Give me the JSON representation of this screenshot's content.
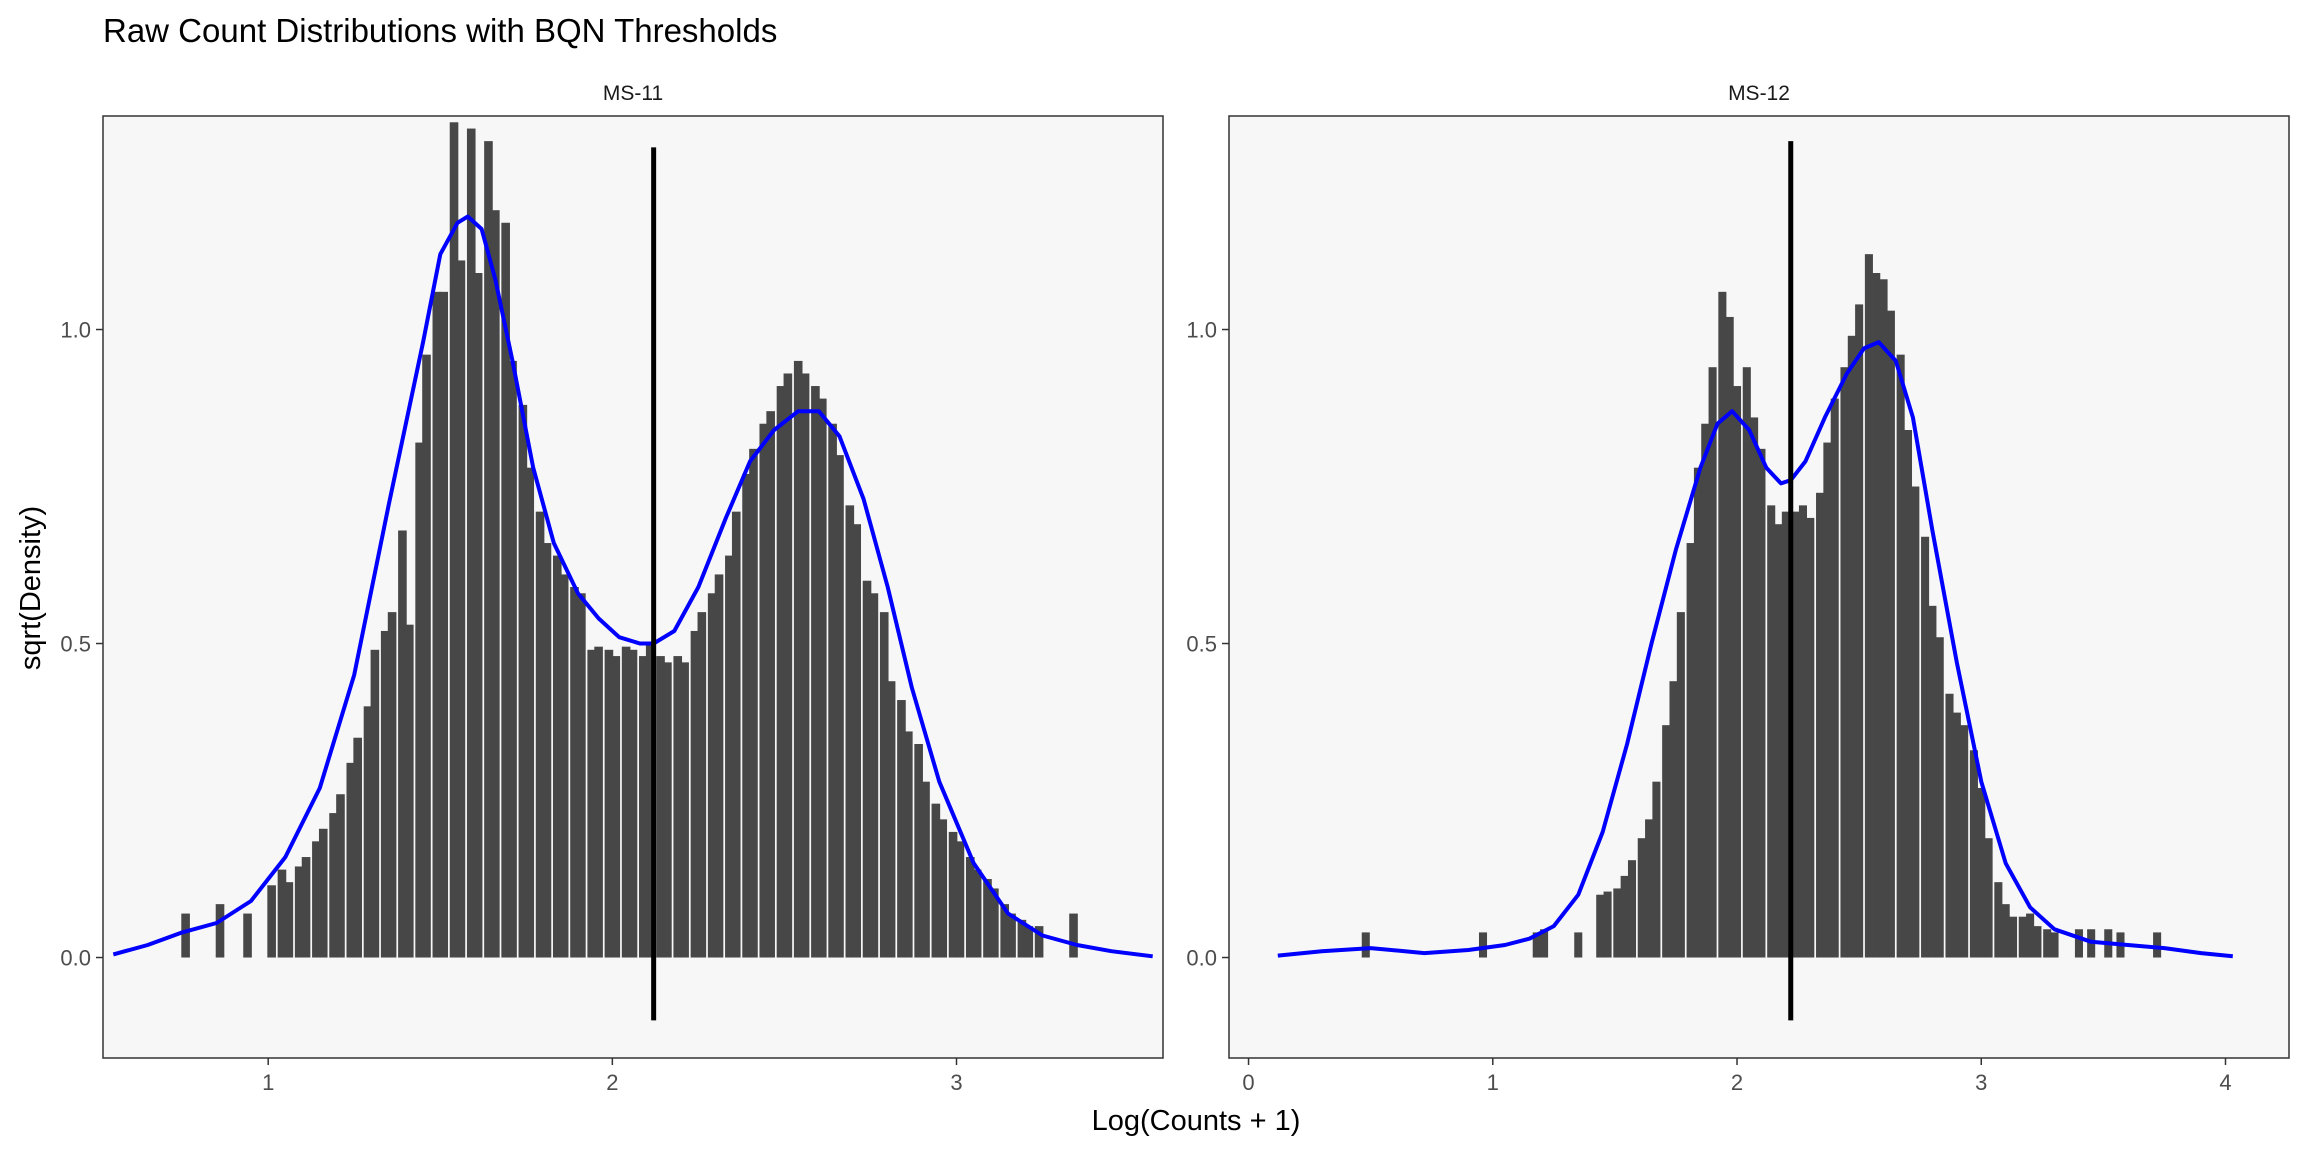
{
  "title": "Raw Count Distributions with BQN Thresholds",
  "xlabel": "Log(Counts + 1)",
  "ylabel": "sqrt(Density)",
  "colors": {
    "bars": "#474747",
    "density": "#0000ff",
    "threshold": "#000000",
    "panel_bg": "#f7f7f7"
  },
  "chart_data": [
    {
      "type": "bar",
      "panel": "MS-11",
      "xlim": [
        0.52,
        3.6
      ],
      "ylim": [
        -0.16,
        1.34
      ],
      "x_ticks": [
        1,
        2,
        3
      ],
      "y_ticks": [
        0.0,
        0.5,
        1.0
      ],
      "y_tick_labels": [
        "0.0",
        "0.5",
        "1.0"
      ],
      "threshold": 2.12,
      "threshold_range": [
        -0.1,
        1.29
      ],
      "bin_width": 0.025,
      "bins": [
        [
          0.76,
          0.07
        ],
        [
          0.86,
          0.085
        ],
        [
          0.94,
          0.07
        ],
        [
          1.01,
          0.115
        ],
        [
          1.04,
          0.14
        ],
        [
          1.06,
          0.12
        ],
        [
          1.09,
          0.145
        ],
        [
          1.11,
          0.16
        ],
        [
          1.14,
          0.185
        ],
        [
          1.16,
          0.205
        ],
        [
          1.19,
          0.23
        ],
        [
          1.21,
          0.26
        ],
        [
          1.24,
          0.31
        ],
        [
          1.26,
          0.35
        ],
        [
          1.29,
          0.4
        ],
        [
          1.31,
          0.49
        ],
        [
          1.34,
          0.52
        ],
        [
          1.36,
          0.55
        ],
        [
          1.39,
          0.68
        ],
        [
          1.41,
          0.53
        ],
        [
          1.44,
          0.82
        ],
        [
          1.46,
          0.96
        ],
        [
          1.49,
          1.06
        ],
        [
          1.51,
          1.06
        ],
        [
          1.54,
          1.33
        ],
        [
          1.56,
          1.11
        ],
        [
          1.59,
          1.32
        ],
        [
          1.61,
          1.09
        ],
        [
          1.64,
          1.3
        ],
        [
          1.66,
          1.19
        ],
        [
          1.69,
          1.17
        ],
        [
          1.71,
          0.95
        ],
        [
          1.74,
          0.88
        ],
        [
          1.76,
          0.78
        ],
        [
          1.79,
          0.71
        ],
        [
          1.81,
          0.66
        ],
        [
          1.84,
          0.64
        ],
        [
          1.86,
          0.61
        ],
        [
          1.89,
          0.59
        ],
        [
          1.91,
          0.58
        ],
        [
          1.94,
          0.49
        ],
        [
          1.96,
          0.495
        ],
        [
          1.99,
          0.49
        ],
        [
          2.01,
          0.48
        ],
        [
          2.04,
          0.495
        ],
        [
          2.06,
          0.49
        ],
        [
          2.09,
          0.48
        ],
        [
          2.11,
          0.5
        ],
        [
          2.14,
          0.48
        ],
        [
          2.16,
          0.47
        ],
        [
          2.19,
          0.48
        ],
        [
          2.21,
          0.47
        ],
        [
          2.24,
          0.52
        ],
        [
          2.26,
          0.55
        ],
        [
          2.29,
          0.58
        ],
        [
          2.31,
          0.61
        ],
        [
          2.34,
          0.64
        ],
        [
          2.36,
          0.71
        ],
        [
          2.39,
          0.77
        ],
        [
          2.41,
          0.81
        ],
        [
          2.44,
          0.85
        ],
        [
          2.46,
          0.87
        ],
        [
          2.49,
          0.91
        ],
        [
          2.51,
          0.93
        ],
        [
          2.54,
          0.95
        ],
        [
          2.56,
          0.93
        ],
        [
          2.59,
          0.91
        ],
        [
          2.61,
          0.89
        ],
        [
          2.64,
          0.85
        ],
        [
          2.66,
          0.8
        ],
        [
          2.69,
          0.72
        ],
        [
          2.71,
          0.69
        ],
        [
          2.74,
          0.6
        ],
        [
          2.76,
          0.58
        ],
        [
          2.79,
          0.55
        ],
        [
          2.81,
          0.44
        ],
        [
          2.84,
          0.41
        ],
        [
          2.86,
          0.36
        ],
        [
          2.89,
          0.34
        ],
        [
          2.91,
          0.28
        ],
        [
          2.94,
          0.245
        ],
        [
          2.96,
          0.22
        ],
        [
          2.99,
          0.2
        ],
        [
          3.01,
          0.185
        ],
        [
          3.04,
          0.16
        ],
        [
          3.06,
          0.14
        ],
        [
          3.09,
          0.125
        ],
        [
          3.11,
          0.11
        ],
        [
          3.14,
          0.085
        ],
        [
          3.16,
          0.07
        ],
        [
          3.19,
          0.06
        ],
        [
          3.21,
          0.05
        ],
        [
          3.24,
          0.05
        ],
        [
          3.34,
          0.07
        ]
      ],
      "density": [
        [
          0.55,
          0.005
        ],
        [
          0.65,
          0.02
        ],
        [
          0.75,
          0.04
        ],
        [
          0.85,
          0.055
        ],
        [
          0.95,
          0.09
        ],
        [
          1.05,
          0.16
        ],
        [
          1.15,
          0.27
        ],
        [
          1.25,
          0.45
        ],
        [
          1.35,
          0.72
        ],
        [
          1.45,
          0.98
        ],
        [
          1.5,
          1.12
        ],
        [
          1.55,
          1.17
        ],
        [
          1.58,
          1.18
        ],
        [
          1.62,
          1.16
        ],
        [
          1.66,
          1.08
        ],
        [
          1.71,
          0.95
        ],
        [
          1.77,
          0.78
        ],
        [
          1.83,
          0.66
        ],
        [
          1.9,
          0.58
        ],
        [
          1.96,
          0.54
        ],
        [
          2.02,
          0.51
        ],
        [
          2.08,
          0.5
        ],
        [
          2.12,
          0.5
        ],
        [
          2.18,
          0.52
        ],
        [
          2.25,
          0.59
        ],
        [
          2.33,
          0.7
        ],
        [
          2.4,
          0.79
        ],
        [
          2.47,
          0.84
        ],
        [
          2.54,
          0.87
        ],
        [
          2.6,
          0.87
        ],
        [
          2.66,
          0.83
        ],
        [
          2.73,
          0.73
        ],
        [
          2.8,
          0.59
        ],
        [
          2.87,
          0.43
        ],
        [
          2.95,
          0.28
        ],
        [
          3.05,
          0.15
        ],
        [
          3.15,
          0.07
        ],
        [
          3.25,
          0.035
        ],
        [
          3.35,
          0.02
        ],
        [
          3.45,
          0.01
        ],
        [
          3.57,
          0.002
        ]
      ]
    },
    {
      "type": "bar",
      "panel": "MS-12",
      "xlim": [
        -0.08,
        4.26
      ],
      "ylim": [
        -0.16,
        1.34
      ],
      "x_ticks": [
        0,
        1,
        2,
        3,
        4
      ],
      "y_ticks": [
        0.0,
        0.5,
        1.0
      ],
      "y_tick_labels": [
        "0.0",
        "0.5",
        "1.0"
      ],
      "threshold": 2.22,
      "threshold_range": [
        -0.1,
        1.3
      ],
      "bin_width": 0.033,
      "bins": [
        [
          0.48,
          0.04
        ],
        [
          0.96,
          0.04
        ],
        [
          1.18,
          0.04
        ],
        [
          1.21,
          0.045
        ],
        [
          1.35,
          0.04
        ],
        [
          1.44,
          0.1
        ],
        [
          1.47,
          0.105
        ],
        [
          1.51,
          0.11
        ],
        [
          1.54,
          0.13
        ],
        [
          1.57,
          0.155
        ],
        [
          1.61,
          0.19
        ],
        [
          1.64,
          0.22
        ],
        [
          1.67,
          0.28
        ],
        [
          1.71,
          0.37
        ],
        [
          1.74,
          0.44
        ],
        [
          1.77,
          0.55
        ],
        [
          1.81,
          0.66
        ],
        [
          1.84,
          0.78
        ],
        [
          1.87,
          0.85
        ],
        [
          1.9,
          0.94
        ],
        [
          1.94,
          1.06
        ],
        [
          1.97,
          1.02
        ],
        [
          2.0,
          0.91
        ],
        [
          2.04,
          0.94
        ],
        [
          2.07,
          0.86
        ],
        [
          2.1,
          0.81
        ],
        [
          2.14,
          0.72
        ],
        [
          2.17,
          0.69
        ],
        [
          2.2,
          0.71
        ],
        [
          2.24,
          0.71
        ],
        [
          2.27,
          0.72
        ],
        [
          2.3,
          0.7
        ],
        [
          2.34,
          0.74
        ],
        [
          2.37,
          0.82
        ],
        [
          2.4,
          0.89
        ],
        [
          2.44,
          0.94
        ],
        [
          2.47,
          0.99
        ],
        [
          2.5,
          1.04
        ],
        [
          2.54,
          1.12
        ],
        [
          2.57,
          1.09
        ],
        [
          2.6,
          1.08
        ],
        [
          2.63,
          1.03
        ],
        [
          2.67,
          0.96
        ],
        [
          2.7,
          0.84
        ],
        [
          2.73,
          0.75
        ],
        [
          2.77,
          0.67
        ],
        [
          2.8,
          0.56
        ],
        [
          2.83,
          0.51
        ],
        [
          2.87,
          0.42
        ],
        [
          2.9,
          0.39
        ],
        [
          2.93,
          0.37
        ],
        [
          2.97,
          0.33
        ],
        [
          3.0,
          0.27
        ],
        [
          3.03,
          0.19
        ],
        [
          3.07,
          0.12
        ],
        [
          3.1,
          0.085
        ],
        [
          3.13,
          0.065
        ],
        [
          3.17,
          0.065
        ],
        [
          3.2,
          0.07
        ],
        [
          3.23,
          0.05
        ],
        [
          3.27,
          0.045
        ],
        [
          3.3,
          0.04
        ],
        [
          3.4,
          0.045
        ],
        [
          3.45,
          0.045
        ],
        [
          3.52,
          0.045
        ],
        [
          3.57,
          0.04
        ],
        [
          3.72,
          0.04
        ]
      ],
      "density": [
        [
          0.12,
          0.003
        ],
        [
          0.3,
          0.01
        ],
        [
          0.5,
          0.015
        ],
        [
          0.72,
          0.007
        ],
        [
          0.9,
          0.012
        ],
        [
          1.05,
          0.02
        ],
        [
          1.15,
          0.03
        ],
        [
          1.25,
          0.05
        ],
        [
          1.35,
          0.1
        ],
        [
          1.45,
          0.2
        ],
        [
          1.55,
          0.34
        ],
        [
          1.65,
          0.5
        ],
        [
          1.75,
          0.65
        ],
        [
          1.85,
          0.78
        ],
        [
          1.92,
          0.85
        ],
        [
          1.98,
          0.87
        ],
        [
          2.05,
          0.84
        ],
        [
          2.12,
          0.78
        ],
        [
          2.18,
          0.755
        ],
        [
          2.22,
          0.76
        ],
        [
          2.28,
          0.79
        ],
        [
          2.36,
          0.86
        ],
        [
          2.45,
          0.93
        ],
        [
          2.52,
          0.97
        ],
        [
          2.58,
          0.98
        ],
        [
          2.65,
          0.95
        ],
        [
          2.72,
          0.86
        ],
        [
          2.8,
          0.68
        ],
        [
          2.9,
          0.47
        ],
        [
          3.0,
          0.28
        ],
        [
          3.1,
          0.15
        ],
        [
          3.2,
          0.08
        ],
        [
          3.3,
          0.045
        ],
        [
          3.45,
          0.025
        ],
        [
          3.6,
          0.02
        ],
        [
          3.75,
          0.015
        ],
        [
          3.9,
          0.007
        ],
        [
          4.03,
          0.002
        ]
      ]
    }
  ]
}
